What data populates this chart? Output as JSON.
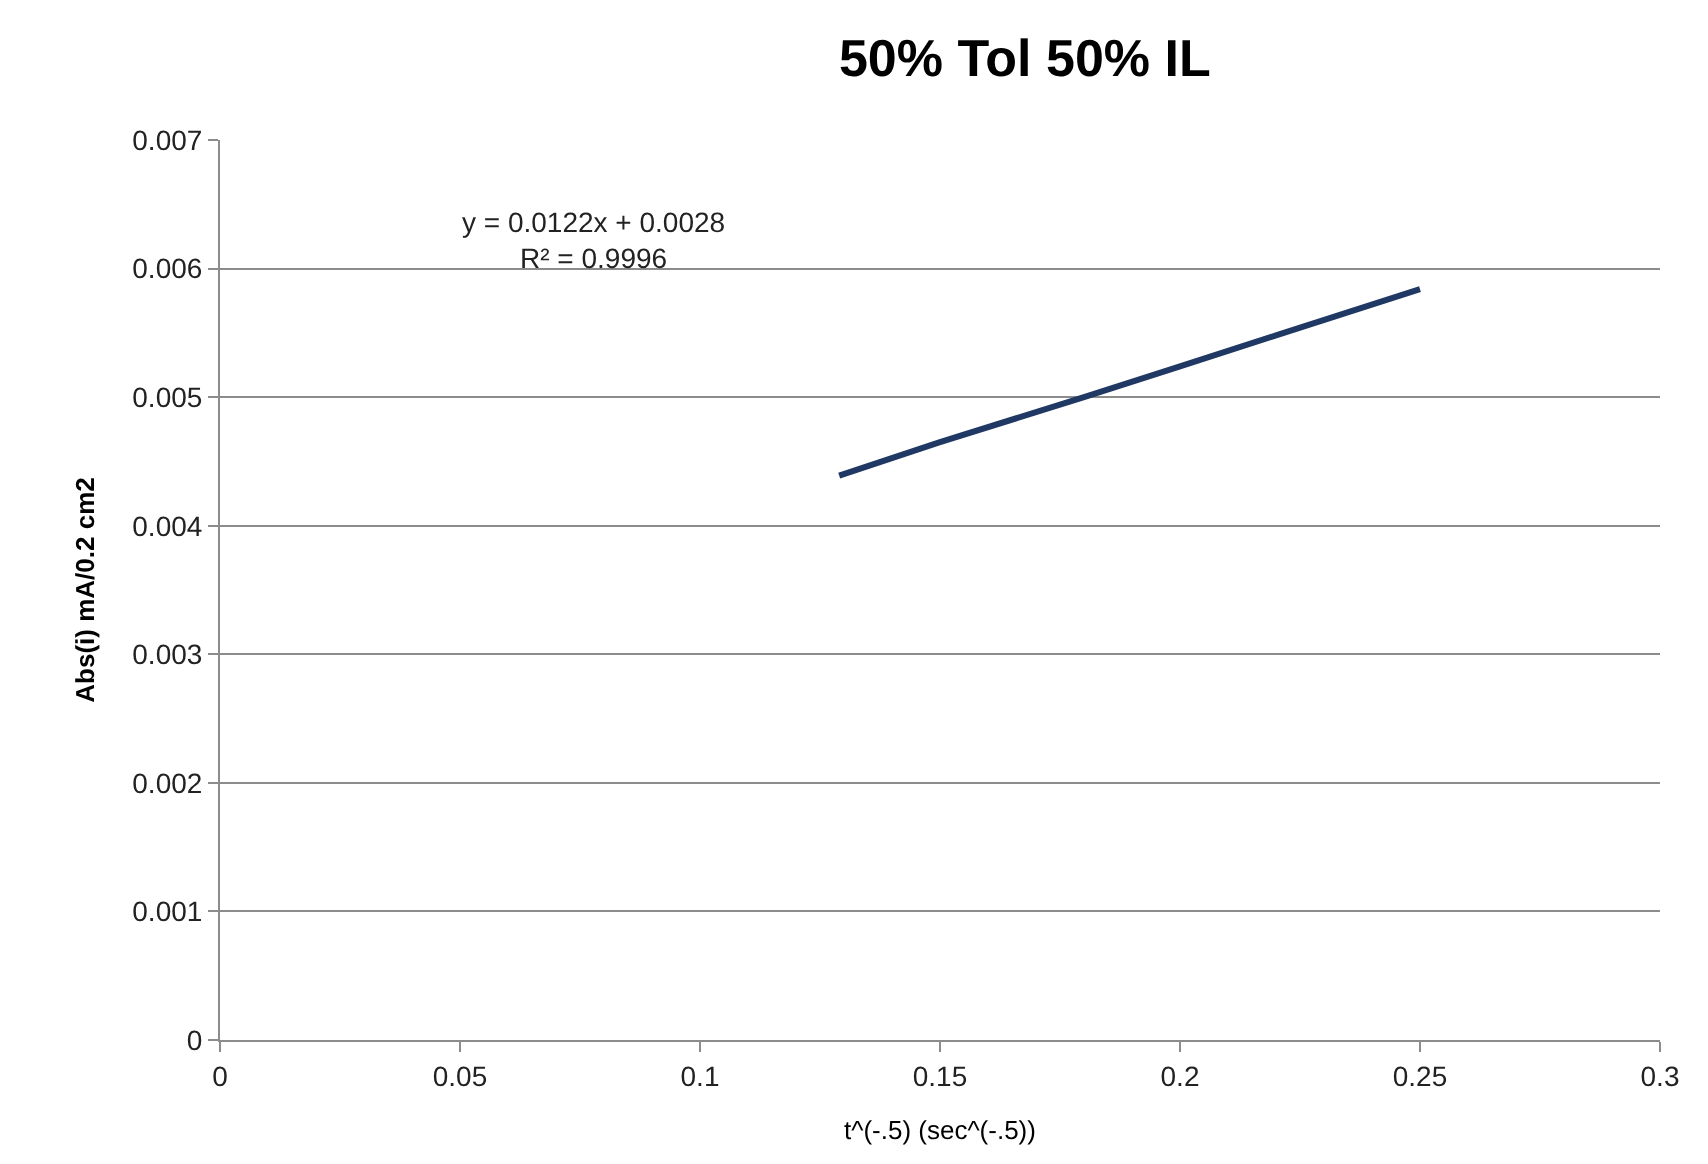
{
  "chart_data": {
    "type": "line",
    "title": "50% Tol 50% IL",
    "xlabel": "t^(-.5) (sec^(-.5))",
    "ylabel": "Abs(i) mA/0.2 cm2",
    "annotations": [
      "y = 0.0122x + 0.0028\nR² = 0.9996"
    ],
    "series": [
      {
        "color": "#1f3864",
        "x": [
          0.129,
          0.15,
          0.18,
          0.2,
          0.22,
          0.25
        ],
        "values": [
          0.00439,
          0.00465,
          0.005,
          0.00524,
          0.00548,
          0.00584
        ]
      }
    ],
    "xlim": [
      0,
      0.3
    ],
    "xticks": [
      0,
      0.05,
      0.1,
      0.15,
      0.2,
      0.25,
      0.3
    ],
    "ylim": [
      0,
      0.007
    ],
    "yticks": [
      0,
      0.001,
      0.002,
      0.003,
      0.004,
      0.005,
      0.006,
      0.007
    ],
    "grid": "y",
    "marker": "none",
    "line_style": "solid"
  }
}
